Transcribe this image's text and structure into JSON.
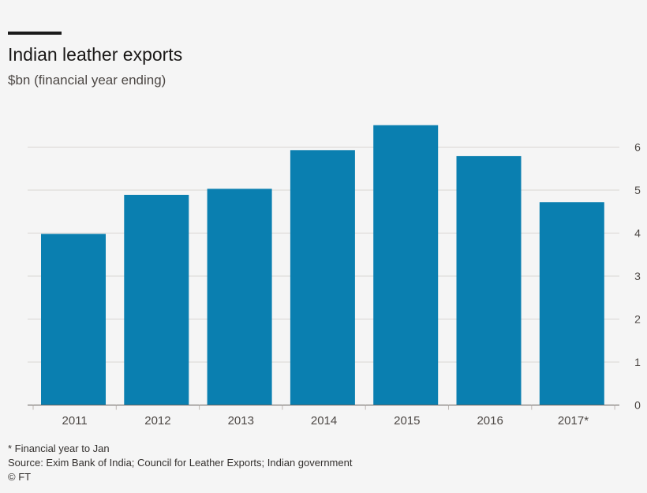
{
  "header": {
    "title": "Indian leather exports",
    "subtitle": "$bn (financial year ending)"
  },
  "footer": {
    "note": "* Financial year to Jan",
    "source": "Source: Exim Bank of India; Council for Leather Exports; Indian government",
    "credit": "© FT"
  },
  "chart_data": {
    "type": "bar",
    "title": "Indian leather exports",
    "subtitle": "$bn (financial year ending)",
    "categories": [
      "2011",
      "2012",
      "2013",
      "2014",
      "2015",
      "2016",
      "2017*"
    ],
    "values": [
      3.98,
      4.89,
      5.03,
      5.93,
      6.51,
      5.79,
      4.72
    ],
    "ylim": [
      0,
      6.8
    ],
    "yticks": [
      "0",
      "1",
      "2",
      "3",
      "4",
      "5",
      "6"
    ],
    "y_axis_side": "right",
    "grid": true,
    "legend": "none",
    "bar_color": "#0a7fb0",
    "grid_color": "#d9d6d3"
  }
}
